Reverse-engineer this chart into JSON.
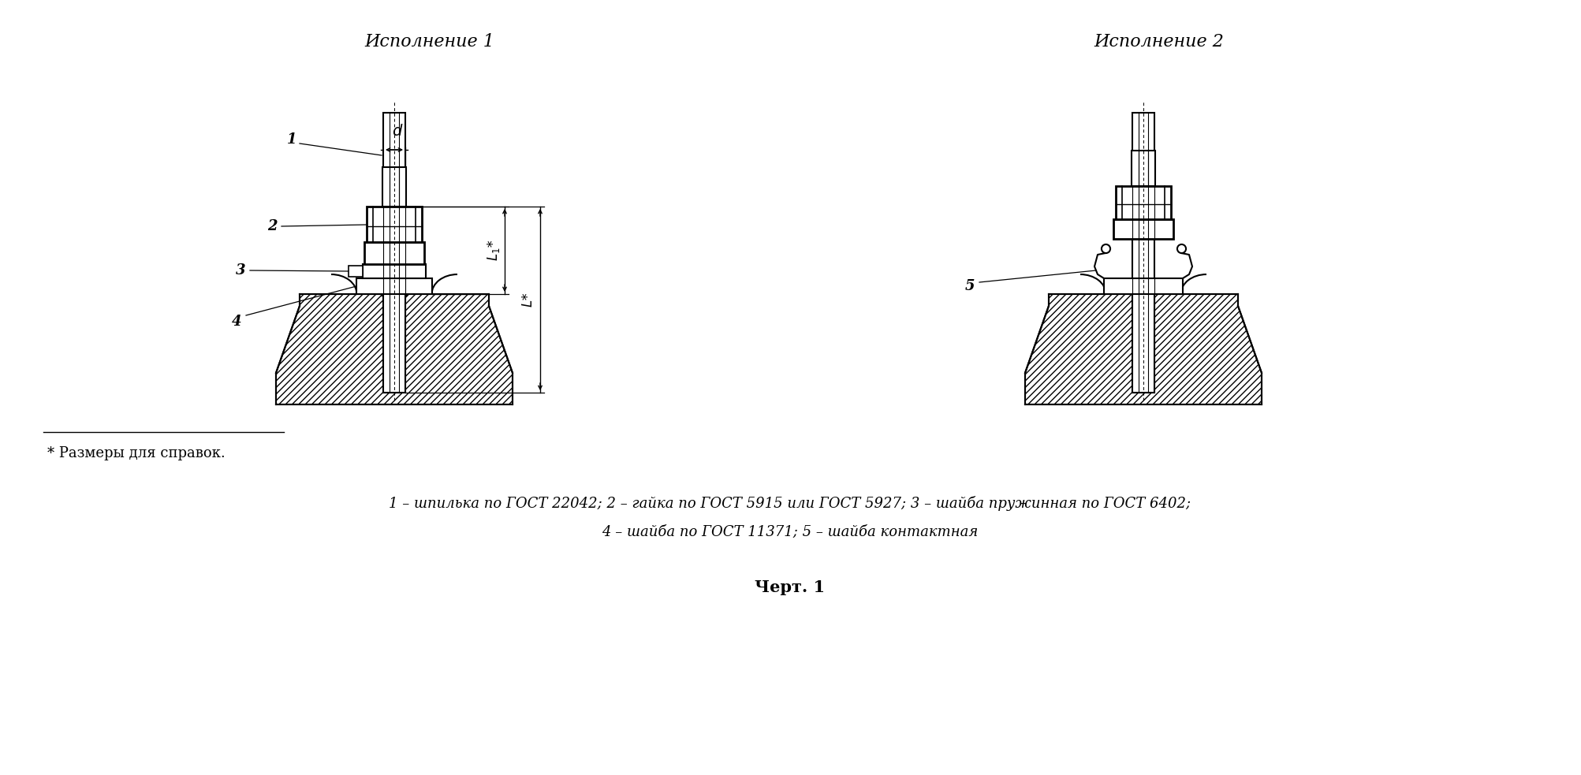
{
  "title_1": "Исполнение 1",
  "title_2": "Исполнение 2",
  "footnote_star": "* Размеры для справок.",
  "legend_line1": "1 – шпилька по ГОСТ 22042; 2 – гайка по ГОСТ 5915 или ГОСТ 5927; 3 – шайба пружинная по ГОСТ 6402;",
  "legend_line2": "4 – шайба по ГОСТ 11371; 5 – шайба контактная",
  "caption": "Черт. 1",
  "bg_color": "#ffffff"
}
